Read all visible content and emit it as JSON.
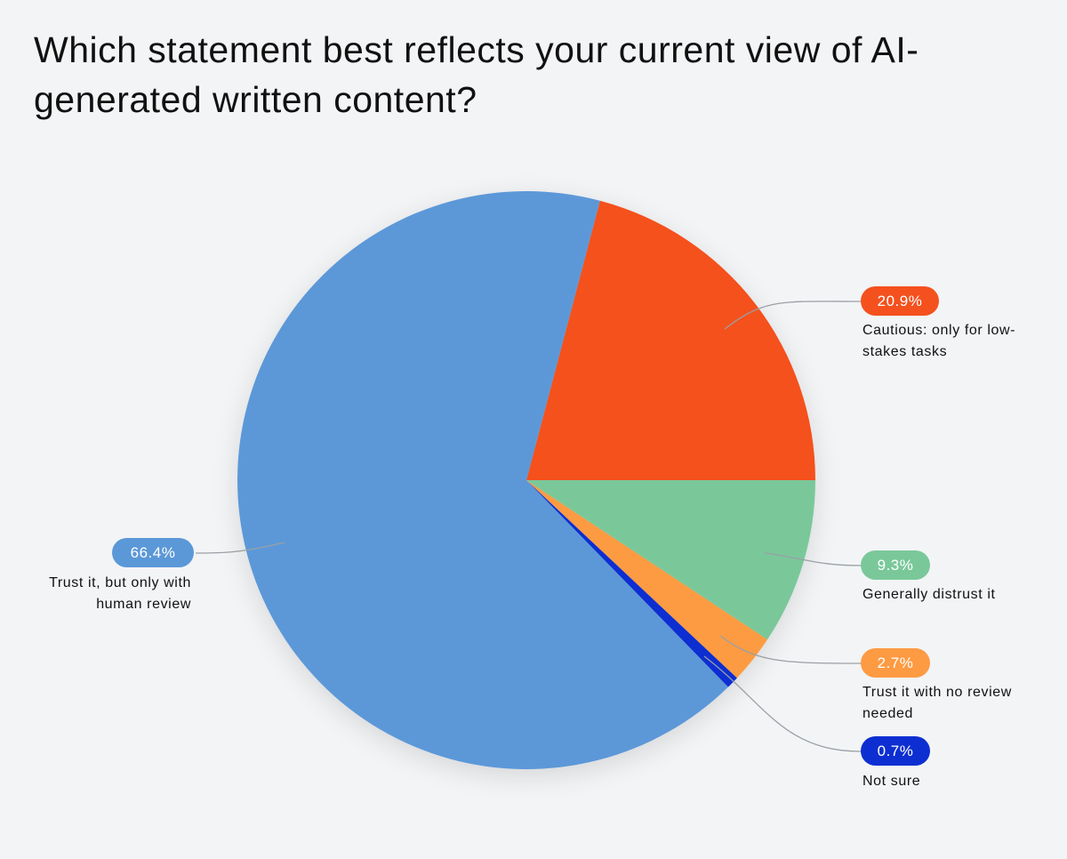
{
  "chart_data": {
    "type": "pie",
    "title": "Which statement best reflects your current view of AI-generated written content?",
    "categories": [
      "Cautious: only for low-stakes tasks",
      "Generally distrust it",
      "Trust it with no review needed",
      "Not sure",
      "Trust it, but only with human review"
    ],
    "values": [
      20.9,
      9.3,
      2.7,
      0.7,
      66.4
    ],
    "value_labels": [
      "20.9%",
      "9.3%",
      "2.7%",
      "0.7%",
      "66.4%"
    ],
    "colors": [
      "#f4511e",
      "#7ac89a",
      "#fd9b43",
      "#0d2fd1",
      "#5b98d8"
    ]
  }
}
